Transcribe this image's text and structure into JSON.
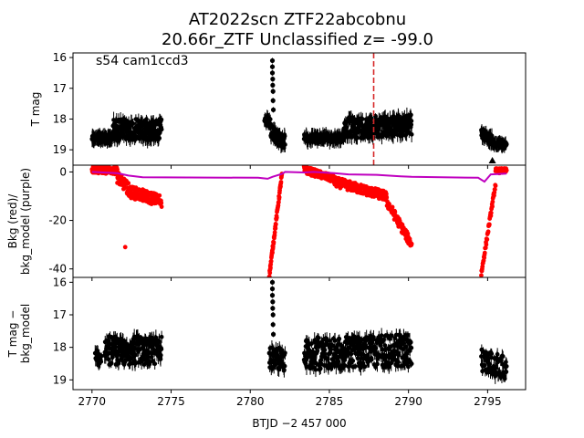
{
  "title": {
    "line1": "AT2022scn  ZTF22abcobnu",
    "line2": "20.66r_ZTF Unclassified z= -99.0"
  },
  "x_axis": {
    "label": "BTJD −2 457 000",
    "ticks": [
      2770,
      2775,
      2780,
      2785,
      2790,
      2795
    ],
    "range": [
      2768.8,
      2797.4
    ]
  },
  "chart_data": [
    {
      "type": "scatter",
      "panel": "top",
      "annotation": "s54 cam1ccd3",
      "ylabel": "T mag",
      "ylim": [
        19.5,
        15.85
      ],
      "yticks": [
        16,
        17,
        18,
        19
      ],
      "marker_line_x": 2787.8,
      "marker_line_color": "#d62728",
      "upper_limit_marker": {
        "x": 2795.3,
        "y": 19.35
      },
      "series": [
        {
          "color": "#000000",
          "segments": [
            {
              "x0": 2770.0,
              "x1": 2771.3,
              "base": 18.62,
              "spread": 0.1,
              "trend": 0.0,
              "n": 140
            },
            {
              "x0": 2771.3,
              "x1": 2774.4,
              "base": 18.35,
              "spread": 0.35,
              "trend": 0.0,
              "n": 220
            },
            {
              "x0": 2780.9,
              "x1": 2781.3,
              "base": 18.05,
              "spread": 0.15,
              "trend": 0.1,
              "n": 25
            },
            {
              "x0": 2781.3,
              "x1": 2782.2,
              "base": 18.45,
              "spread": 0.25,
              "trend": 0.3,
              "n": 50
            },
            {
              "x0": 2783.4,
              "x1": 2785.9,
              "base": 18.62,
              "spread": 0.12,
              "trend": 0.0,
              "n": 160
            },
            {
              "x0": 2785.9,
              "x1": 2790.2,
              "base": 18.3,
              "spread": 0.35,
              "trend": -0.1,
              "n": 300
            },
            {
              "x0": 2794.6,
              "x1": 2795.3,
              "base": 18.45,
              "spread": 0.15,
              "trend": 0.25,
              "n": 45
            },
            {
              "x0": 2795.3,
              "x1": 2796.2,
              "base": 18.82,
              "spread": 0.06,
              "trend": 0.0,
              "n": 60
            }
          ],
          "peak": [
            {
              "x": 2781.4,
              "y": 16.1
            },
            {
              "x": 2781.4,
              "y": 16.3
            },
            {
              "x": 2781.4,
              "y": 16.5
            },
            {
              "x": 2781.42,
              "y": 16.7
            },
            {
              "x": 2781.42,
              "y": 16.9
            },
            {
              "x": 2781.44,
              "y": 17.1
            },
            {
              "x": 2781.44,
              "y": 17.4
            },
            {
              "x": 2781.46,
              "y": 17.7
            }
          ]
        }
      ]
    },
    {
      "type": "scatter",
      "panel": "middle",
      "ylabel": "Bkg (red)/\nbkg_model (purple)",
      "ylim": [
        -43.5,
        2.8
      ],
      "yticks": [
        0,
        -20,
        -40
      ],
      "series": [
        {
          "name": "Bkg",
          "color": "#ff0000",
          "segments": [
            {
              "x0": 2770.0,
              "x1": 2771.6,
              "v0": 1.0,
              "v1": 0.5,
              "spread": 1.5,
              "n": 90
            },
            {
              "x0": 2771.6,
              "x1": 2772.3,
              "v0": -2.0,
              "v1": -7.0,
              "spread": 2.5,
              "n": 40
            },
            {
              "x0": 2772.3,
              "x1": 2774.4,
              "v0": -8.0,
              "v1": -12.0,
              "spread": 2.5,
              "n": 110
            },
            {
              "x0": 2781.2,
              "x1": 2782.0,
              "v0": -43.0,
              "v1": -1.0,
              "spread": 1.0,
              "n": 60
            },
            {
              "x0": 2783.4,
              "x1": 2785.3,
              "v0": 1.0,
              "v1": -3.0,
              "spread": 1.5,
              "n": 110
            },
            {
              "x0": 2785.3,
              "x1": 2788.6,
              "v0": -4.0,
              "v1": -10.0,
              "spread": 2.0,
              "n": 180
            },
            {
              "x0": 2788.6,
              "x1": 2790.2,
              "v0": -12.0,
              "v1": -30.0,
              "spread": 2.0,
              "n": 80
            },
            {
              "x0": 2794.6,
              "x1": 2795.5,
              "v0": -42.0,
              "v1": -5.0,
              "spread": 1.0,
              "n": 50
            },
            {
              "x0": 2795.5,
              "x1": 2796.2,
              "v0": 0.5,
              "v1": 0.5,
              "spread": 1.0,
              "n": 40
            }
          ],
          "outliers": [
            {
              "x": 2772.1,
              "y": -31.0
            }
          ]
        },
        {
          "name": "bkg_model",
          "color": "#bf00bf",
          "line": [
            [
              2770.0,
              0.0
            ],
            [
              2771.6,
              -0.5
            ],
            [
              2772.3,
              -1.5
            ],
            [
              2773.2,
              -2.2
            ],
            [
              2780.5,
              -2.4
            ],
            [
              2781.1,
              -2.8
            ],
            [
              2781.4,
              -2.0
            ],
            [
              2782.0,
              -0.8
            ],
            [
              2782.2,
              0.0
            ],
            [
              2783.4,
              -0.2
            ],
            [
              2784.0,
              0.0
            ],
            [
              2785.3,
              -0.5
            ],
            [
              2786.2,
              -1.0
            ],
            [
              2788.0,
              -1.2
            ],
            [
              2789.5,
              -1.8
            ],
            [
              2790.2,
              -2.0
            ],
            [
              2794.4,
              -2.4
            ],
            [
              2794.8,
              -4.0
            ],
            [
              2795.2,
              -1.0
            ],
            [
              2796.2,
              -0.7
            ]
          ]
        }
      ]
    },
    {
      "type": "scatter",
      "panel": "bottom",
      "ylabel": "T mag −\nbkg_model",
      "ylim": [
        19.3,
        15.85
      ],
      "yticks": [
        16,
        17,
        18,
        19
      ],
      "series": [
        {
          "color": "#000000",
          "segments": [
            {
              "x0": 2770.2,
              "x1": 2770.6,
              "base": 18.3,
              "spread": 0.25,
              "trend": 0.0,
              "n": 15
            },
            {
              "x0": 2770.8,
              "x1": 2774.4,
              "base": 18.1,
              "spread": 0.45,
              "trend": 0.0,
              "n": 220
            },
            {
              "x0": 2781.2,
              "x1": 2782.2,
              "base": 18.3,
              "spread": 0.35,
              "trend": 0.1,
              "n": 55
            },
            {
              "x0": 2783.4,
              "x1": 2790.2,
              "base": 18.2,
              "spread": 0.5,
              "trend": -0.1,
              "n": 380
            },
            {
              "x0": 2794.6,
              "x1": 2796.2,
              "base": 18.4,
              "spread": 0.35,
              "trend": 0.25,
              "n": 70
            }
          ],
          "peak": [
            {
              "x": 2781.4,
              "y": 16.0
            },
            {
              "x": 2781.4,
              "y": 16.2
            },
            {
              "x": 2781.4,
              "y": 16.4
            },
            {
              "x": 2781.42,
              "y": 16.6
            },
            {
              "x": 2781.42,
              "y": 16.8
            },
            {
              "x": 2781.44,
              "y": 17.0
            },
            {
              "x": 2781.44,
              "y": 17.3
            },
            {
              "x": 2781.46,
              "y": 17.6
            }
          ]
        }
      ]
    }
  ]
}
